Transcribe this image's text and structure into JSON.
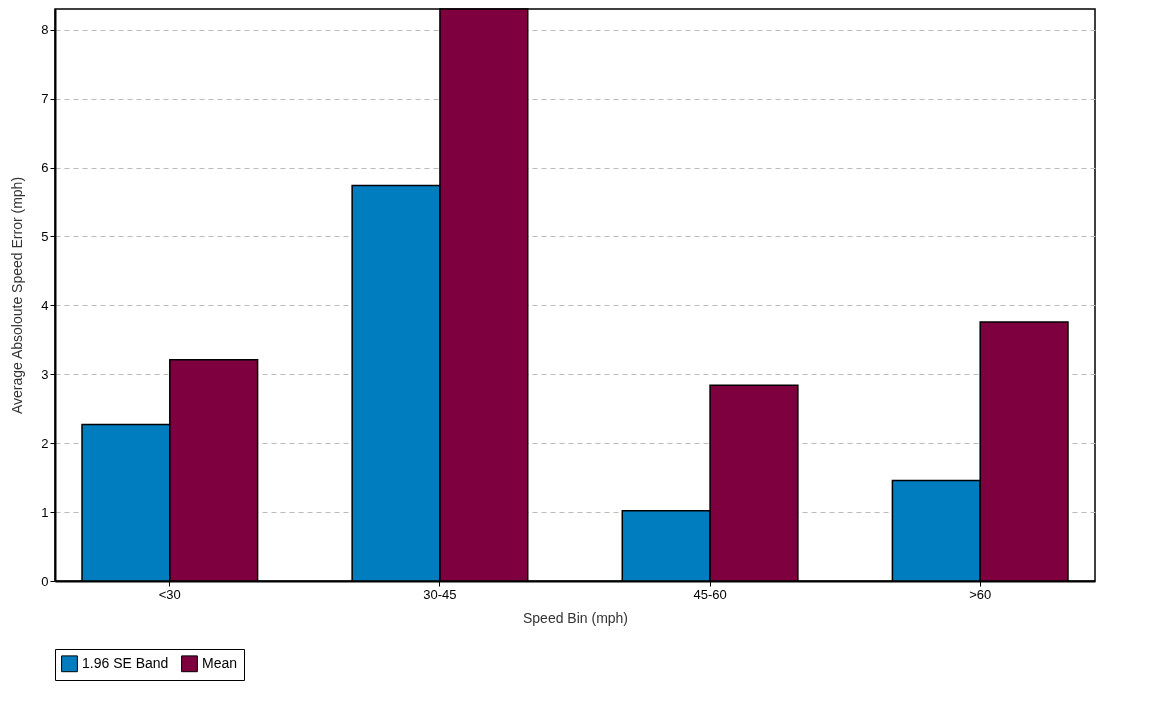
{
  "chart_data": {
    "type": "bar",
    "xlabel": "Speed Bin (mph)",
    "ylabel": "Average Absoloute Speed Error (mph)",
    "categories": [
      "<30",
      "30-45",
      "45-60",
      ">60"
    ],
    "series": [
      {
        "name": "1.96 SE Band",
        "color": "#007dbf",
        "values": [
          2.27,
          5.74,
          1.02,
          1.46
        ]
      },
      {
        "name": "Mean",
        "color": "#7f003f",
        "values": [
          3.21,
          8.3,
          2.84,
          3.76
        ]
      }
    ],
    "ylim": [
      0,
      8.3
    ],
    "yticks": [
      0,
      1,
      2,
      3,
      4,
      5,
      6,
      7,
      8
    ],
    "grid": "y",
    "legend": "bottom"
  }
}
